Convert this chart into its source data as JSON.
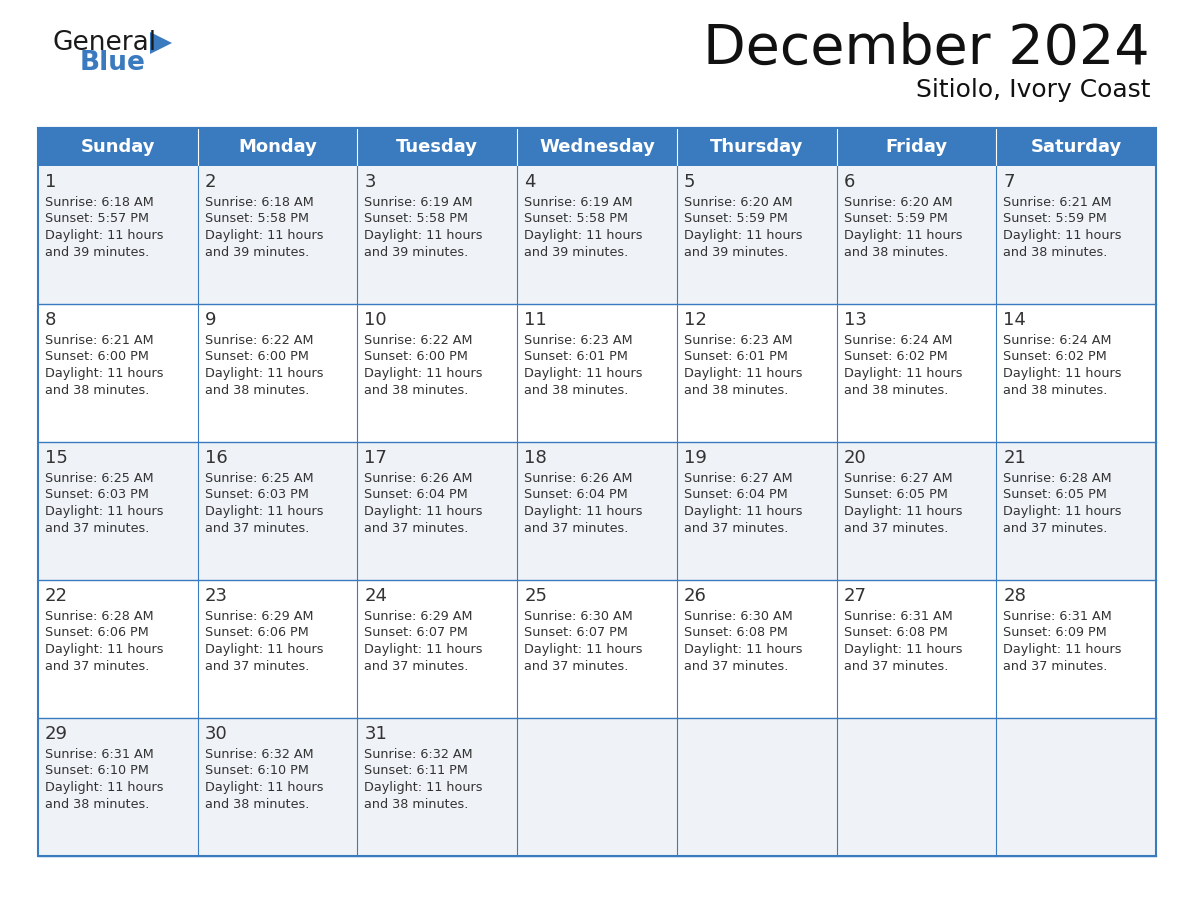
{
  "title": "December 2024",
  "subtitle": "Sitiolo, Ivory Coast",
  "header_bg_color": "#3a7abf",
  "header_text_color": "#ffffff",
  "day_names": [
    "Sunday",
    "Monday",
    "Tuesday",
    "Wednesday",
    "Thursday",
    "Friday",
    "Saturday"
  ],
  "row_bg_even": "#eff3f8",
  "row_bg_odd": "#ffffff",
  "border_color": "#3a7abf",
  "cell_border_color": "#3a7abf",
  "text_color": "#333333",
  "title_color": "#111111",
  "calendar_data": [
    [
      {
        "day": 1,
        "sunrise": "6:18 AM",
        "sunset": "5:57 PM",
        "daylight": "11 hours",
        "daylight2": "and 39 minutes."
      },
      {
        "day": 2,
        "sunrise": "6:18 AM",
        "sunset": "5:58 PM",
        "daylight": "11 hours",
        "daylight2": "and 39 minutes."
      },
      {
        "day": 3,
        "sunrise": "6:19 AM",
        "sunset": "5:58 PM",
        "daylight": "11 hours",
        "daylight2": "and 39 minutes."
      },
      {
        "day": 4,
        "sunrise": "6:19 AM",
        "sunset": "5:58 PM",
        "daylight": "11 hours",
        "daylight2": "and 39 minutes."
      },
      {
        "day": 5,
        "sunrise": "6:20 AM",
        "sunset": "5:59 PM",
        "daylight": "11 hours",
        "daylight2": "and 39 minutes."
      },
      {
        "day": 6,
        "sunrise": "6:20 AM",
        "sunset": "5:59 PM",
        "daylight": "11 hours",
        "daylight2": "and 38 minutes."
      },
      {
        "day": 7,
        "sunrise": "6:21 AM",
        "sunset": "5:59 PM",
        "daylight": "11 hours",
        "daylight2": "and 38 minutes."
      }
    ],
    [
      {
        "day": 8,
        "sunrise": "6:21 AM",
        "sunset": "6:00 PM",
        "daylight": "11 hours",
        "daylight2": "and 38 minutes."
      },
      {
        "day": 9,
        "sunrise": "6:22 AM",
        "sunset": "6:00 PM",
        "daylight": "11 hours",
        "daylight2": "and 38 minutes."
      },
      {
        "day": 10,
        "sunrise": "6:22 AM",
        "sunset": "6:00 PM",
        "daylight": "11 hours",
        "daylight2": "and 38 minutes."
      },
      {
        "day": 11,
        "sunrise": "6:23 AM",
        "sunset": "6:01 PM",
        "daylight": "11 hours",
        "daylight2": "and 38 minutes."
      },
      {
        "day": 12,
        "sunrise": "6:23 AM",
        "sunset": "6:01 PM",
        "daylight": "11 hours",
        "daylight2": "and 38 minutes."
      },
      {
        "day": 13,
        "sunrise": "6:24 AM",
        "sunset": "6:02 PM",
        "daylight": "11 hours",
        "daylight2": "and 38 minutes."
      },
      {
        "day": 14,
        "sunrise": "6:24 AM",
        "sunset": "6:02 PM",
        "daylight": "11 hours",
        "daylight2": "and 38 minutes."
      }
    ],
    [
      {
        "day": 15,
        "sunrise": "6:25 AM",
        "sunset": "6:03 PM",
        "daylight": "11 hours",
        "daylight2": "and 37 minutes."
      },
      {
        "day": 16,
        "sunrise": "6:25 AM",
        "sunset": "6:03 PM",
        "daylight": "11 hours",
        "daylight2": "and 37 minutes."
      },
      {
        "day": 17,
        "sunrise": "6:26 AM",
        "sunset": "6:04 PM",
        "daylight": "11 hours",
        "daylight2": "and 37 minutes."
      },
      {
        "day": 18,
        "sunrise": "6:26 AM",
        "sunset": "6:04 PM",
        "daylight": "11 hours",
        "daylight2": "and 37 minutes."
      },
      {
        "day": 19,
        "sunrise": "6:27 AM",
        "sunset": "6:04 PM",
        "daylight": "11 hours",
        "daylight2": "and 37 minutes."
      },
      {
        "day": 20,
        "sunrise": "6:27 AM",
        "sunset": "6:05 PM",
        "daylight": "11 hours",
        "daylight2": "and 37 minutes."
      },
      {
        "day": 21,
        "sunrise": "6:28 AM",
        "sunset": "6:05 PM",
        "daylight": "11 hours",
        "daylight2": "and 37 minutes."
      }
    ],
    [
      {
        "day": 22,
        "sunrise": "6:28 AM",
        "sunset": "6:06 PM",
        "daylight": "11 hours",
        "daylight2": "and 37 minutes."
      },
      {
        "day": 23,
        "sunrise": "6:29 AM",
        "sunset": "6:06 PM",
        "daylight": "11 hours",
        "daylight2": "and 37 minutes."
      },
      {
        "day": 24,
        "sunrise": "6:29 AM",
        "sunset": "6:07 PM",
        "daylight": "11 hours",
        "daylight2": "and 37 minutes."
      },
      {
        "day": 25,
        "sunrise": "6:30 AM",
        "sunset": "6:07 PM",
        "daylight": "11 hours",
        "daylight2": "and 37 minutes."
      },
      {
        "day": 26,
        "sunrise": "6:30 AM",
        "sunset": "6:08 PM",
        "daylight": "11 hours",
        "daylight2": "and 37 minutes."
      },
      {
        "day": 27,
        "sunrise": "6:31 AM",
        "sunset": "6:08 PM",
        "daylight": "11 hours",
        "daylight2": "and 37 minutes."
      },
      {
        "day": 28,
        "sunrise": "6:31 AM",
        "sunset": "6:09 PM",
        "daylight": "11 hours",
        "daylight2": "and 37 minutes."
      }
    ],
    [
      {
        "day": 29,
        "sunrise": "6:31 AM",
        "sunset": "6:10 PM",
        "daylight": "11 hours",
        "daylight2": "and 38 minutes."
      },
      {
        "day": 30,
        "sunrise": "6:32 AM",
        "sunset": "6:10 PM",
        "daylight": "11 hours",
        "daylight2": "and 38 minutes."
      },
      {
        "day": 31,
        "sunrise": "6:32 AM",
        "sunset": "6:11 PM",
        "daylight": "11 hours",
        "daylight2": "and 38 minutes."
      },
      null,
      null,
      null,
      null
    ]
  ],
  "logo_color_general": "#1a1a1a",
  "logo_color_blue": "#3a7abf",
  "logo_triangle_color": "#3a7abf",
  "fig_width": 11.88,
  "fig_height": 9.18,
  "dpi": 100
}
